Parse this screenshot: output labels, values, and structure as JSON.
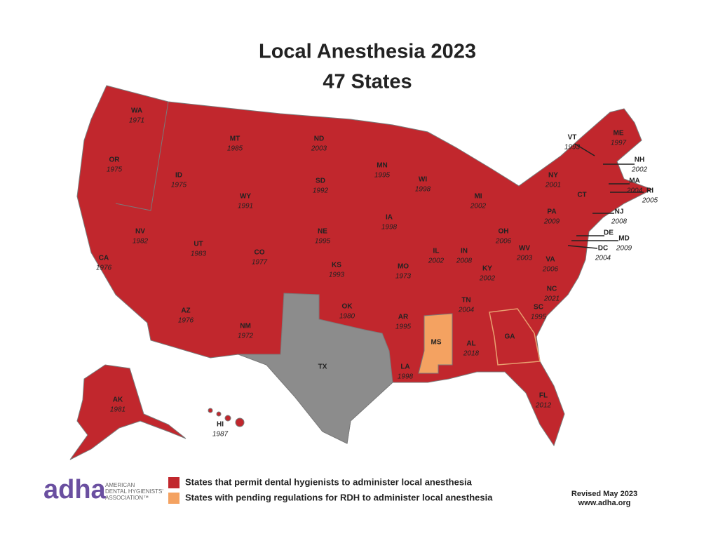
{
  "title": "Local Anesthesia 2023",
  "subtitle": "47 States",
  "states": [
    {
      "abbr": "WA",
      "year": "1971"
    },
    {
      "abbr": "OR",
      "year": "1975"
    },
    {
      "abbr": "CA",
      "year": "1976"
    },
    {
      "abbr": "NV",
      "year": "1982"
    },
    {
      "abbr": "ID",
      "year": "1975"
    },
    {
      "abbr": "MT",
      "year": "1985"
    },
    {
      "abbr": "WY",
      "year": "1991"
    },
    {
      "abbr": "UT",
      "year": "1983"
    },
    {
      "abbr": "CO",
      "year": "1977"
    },
    {
      "abbr": "AZ",
      "year": "1976"
    },
    {
      "abbr": "NM",
      "year": "1972"
    },
    {
      "abbr": "ND",
      "year": "2003"
    },
    {
      "abbr": "SD",
      "year": "1992"
    },
    {
      "abbr": "NE",
      "year": "1995"
    },
    {
      "abbr": "KS",
      "year": "1993"
    },
    {
      "abbr": "OK",
      "year": "1980"
    },
    {
      "abbr": "TX"
    },
    {
      "abbr": "MN",
      "year": "1995"
    },
    {
      "abbr": "IA",
      "year": "1998"
    },
    {
      "abbr": "MO",
      "year": "1973"
    },
    {
      "abbr": "AR",
      "year": "1995"
    },
    {
      "abbr": "LA",
      "year": "1998"
    },
    {
      "abbr": "WI",
      "year": "1998"
    },
    {
      "abbr": "IL",
      "year": "2002"
    },
    {
      "abbr": "MI",
      "year": "2002"
    },
    {
      "abbr": "IN",
      "year": "2008"
    },
    {
      "abbr": "OH",
      "year": "2006"
    },
    {
      "abbr": "KY",
      "year": "2002"
    },
    {
      "abbr": "TN",
      "year": "2004"
    },
    {
      "abbr": "MS"
    },
    {
      "abbr": "AL",
      "year": "2018"
    },
    {
      "abbr": "GA"
    },
    {
      "abbr": "FL",
      "year": "2012"
    },
    {
      "abbr": "SC",
      "year": "1995"
    },
    {
      "abbr": "NC",
      "year": "2021"
    },
    {
      "abbr": "VA",
      "year": "2006"
    },
    {
      "abbr": "WV",
      "year": "2003"
    },
    {
      "abbr": "PA",
      "year": "2009"
    },
    {
      "abbr": "NY",
      "year": "2001"
    },
    {
      "abbr": "VT",
      "year": "1993"
    },
    {
      "abbr": "NH",
      "year": "2002"
    },
    {
      "abbr": "ME",
      "year": "1997"
    },
    {
      "abbr": "MA",
      "year": "2004"
    },
    {
      "abbr": "RI",
      "year": "2005"
    },
    {
      "abbr": "CT"
    },
    {
      "abbr": "NJ",
      "year": "2008"
    },
    {
      "abbr": "DE"
    },
    {
      "abbr": "MD",
      "year": "2009"
    },
    {
      "abbr": "DC",
      "year": "2004"
    },
    {
      "abbr": "AK",
      "year": "1981"
    },
    {
      "abbr": "HI",
      "year": "1987"
    }
  ],
  "legend": [
    {
      "label": "States that permit dental hygienists to administer local anesthesia",
      "color": "#c1272d"
    },
    {
      "label": "States with pending regulations for  RDH to administer local anesthesia",
      "color": "#f4a261"
    }
  ],
  "other_color": "#8c8c8c",
  "revised": "Revised May 2023",
  "website": "www.adha.org",
  "logo": {
    "mark": "adha",
    "lines": [
      "AMERICAN",
      "DENTAL HYGIENISTS'",
      "ASSOCIATION™"
    ]
  }
}
